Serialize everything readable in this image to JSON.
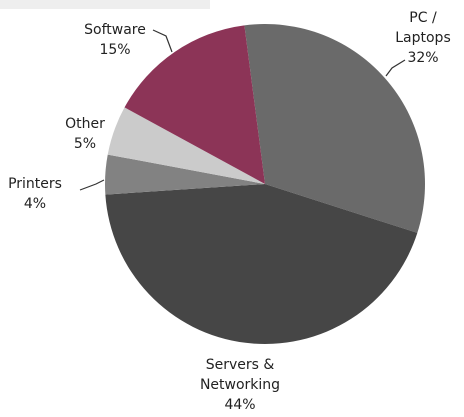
{
  "chart_data": {
    "type": "pie",
    "categories": [
      "PC / Laptops",
      "Servers & Networking",
      "Printers",
      "Other",
      "Software"
    ],
    "values": [
      32,
      44,
      4,
      5,
      15
    ],
    "value_labels": [
      "32%",
      "44%",
      "4%",
      "5%",
      "15%"
    ],
    "colors": [
      "#6a6a6a",
      "#464646",
      "#828282",
      "#cbcbcb",
      "#8c3457"
    ]
  }
}
